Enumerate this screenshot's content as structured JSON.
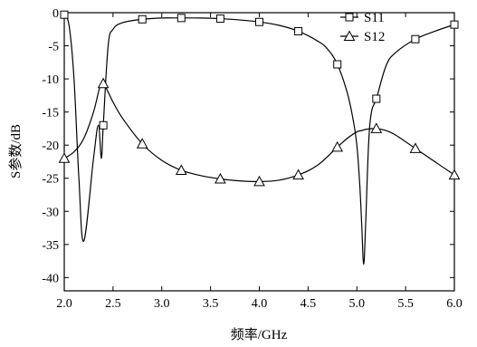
{
  "chart_data": {
    "type": "line",
    "xlabel": "频率/GHz",
    "ylabel": "S参数/dB",
    "xlim": [
      2.0,
      6.0
    ],
    "ylim": [
      -42,
      0
    ],
    "xticks": [
      "2.0",
      "2.5",
      "3.0",
      "3.5",
      "4.0",
      "4.5",
      "5.0",
      "5.5",
      "6.0"
    ],
    "yticks": [
      "0",
      "-5",
      "-10",
      "-15",
      "-20",
      "-25",
      "-30",
      "-35",
      "-40"
    ],
    "legend_position": "top-right",
    "series": [
      {
        "name": "S11",
        "marker": "square",
        "x": [
          2.0,
          2.05,
          2.1,
          2.15,
          2.2,
          2.3,
          2.35,
          2.38,
          2.4,
          2.45,
          2.5,
          2.6,
          2.8,
          3.0,
          3.2,
          3.4,
          3.6,
          3.8,
          4.0,
          4.2,
          4.4,
          4.6,
          4.7,
          4.8,
          4.9,
          4.96,
          5.0,
          5.03,
          5.05,
          5.07,
          5.09,
          5.12,
          5.15,
          5.2,
          5.3,
          5.4,
          5.6,
          5.8,
          6.0
        ],
        "y": [
          -0.3,
          -2.0,
          -10.0,
          -25.0,
          -34.5,
          -22.0,
          -17.0,
          -22.0,
          -17.0,
          -5.0,
          -2.5,
          -1.5,
          -1.0,
          -0.8,
          -0.8,
          -0.8,
          -0.9,
          -1.1,
          -1.4,
          -1.9,
          -2.8,
          -4.3,
          -5.5,
          -7.8,
          -12.0,
          -16.0,
          -20.0,
          -26.0,
          -32.0,
          -38.0,
          -32.0,
          -20.0,
          -15.0,
          -13.0,
          -8.0,
          -6.0,
          -4.0,
          -2.8,
          -1.8
        ],
        "markers_x": [
          2.0,
          2.4,
          2.8,
          3.2,
          3.6,
          4.0,
          4.4,
          4.8,
          5.2,
          5.6,
          6.0
        ],
        "markers_y": [
          -0.3,
          -17.0,
          -1.0,
          -0.8,
          -0.9,
          -1.4,
          -2.8,
          -7.8,
          -13.0,
          -4.0,
          -1.8
        ]
      },
      {
        "name": "S12",
        "marker": "triangle",
        "x": [
          2.0,
          2.1,
          2.2,
          2.3,
          2.36,
          2.4,
          2.45,
          2.5,
          2.6,
          2.8,
          3.0,
          3.2,
          3.4,
          3.6,
          3.8,
          4.0,
          4.2,
          4.4,
          4.6,
          4.8,
          4.9,
          5.0,
          5.05,
          5.1,
          5.2,
          5.3,
          5.4,
          5.6,
          5.8,
          6.0
        ],
        "y": [
          -22.0,
          -21.0,
          -19.0,
          -15.0,
          -11.5,
          -10.7,
          -12.0,
          -13.5,
          -16.0,
          -19.8,
          -22.3,
          -23.8,
          -24.6,
          -25.1,
          -25.4,
          -25.5,
          -25.3,
          -24.5,
          -23.0,
          -20.3,
          -19.0,
          -18.0,
          -17.8,
          -17.6,
          -17.5,
          -17.8,
          -18.5,
          -20.5,
          -22.5,
          -24.5
        ],
        "markers_x": [
          2.0,
          2.4,
          2.8,
          3.2,
          3.6,
          4.0,
          4.4,
          4.8,
          5.2,
          5.6,
          6.0
        ],
        "markers_y": [
          -22.0,
          -10.7,
          -19.8,
          -23.8,
          -25.1,
          -25.5,
          -24.5,
          -20.3,
          -17.5,
          -20.5,
          -24.5
        ]
      }
    ]
  }
}
